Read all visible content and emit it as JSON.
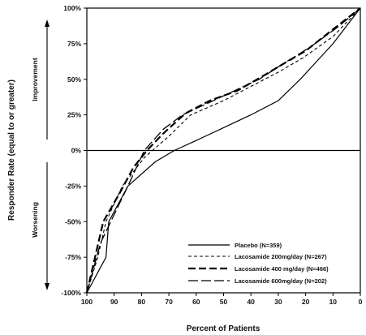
{
  "chart_data": {
    "type": "line",
    "xlabel": "Percent of Patients",
    "ylabel": "Responder Rate (equal to or greater)",
    "xlim": [
      100,
      0
    ],
    "ylim": [
      -100,
      100
    ],
    "x_ticks": [
      100,
      90,
      80,
      70,
      60,
      50,
      40,
      30,
      20,
      10,
      0
    ],
    "y_ticks": [
      100,
      75,
      50,
      25,
      0,
      -25,
      -50,
      -75,
      -100
    ],
    "y_tick_labels": [
      "100%",
      "75%",
      "50%",
      "25%",
      "0%",
      "-25%",
      "-50%",
      "-75%",
      "-100%"
    ],
    "side_labels": {
      "top": "Improvement",
      "bottom": "Worsening"
    },
    "legend_position": "bottom-right",
    "series": [
      {
        "name": "Placebo (N=359)",
        "dash": "solid",
        "width": 1.2,
        "points": [
          [
            100,
            -100
          ],
          [
            93,
            -75
          ],
          [
            92,
            -50
          ],
          [
            85,
            -25
          ],
          [
            75,
            -8
          ],
          [
            68,
            0
          ],
          [
            60,
            7
          ],
          [
            50,
            16
          ],
          [
            40,
            25
          ],
          [
            30,
            35
          ],
          [
            22,
            50
          ],
          [
            10,
            75
          ],
          [
            0,
            100
          ]
        ]
      },
      {
        "name": "Lacosamide  200mg/day  (N=267)",
        "dash": "4,3",
        "width": 1.1,
        "points": [
          [
            100,
            -100
          ],
          [
            96,
            -75
          ],
          [
            93,
            -50
          ],
          [
            87,
            -25
          ],
          [
            79,
            -5
          ],
          [
            76,
            0
          ],
          [
            70,
            10
          ],
          [
            62,
            25
          ],
          [
            50,
            35
          ],
          [
            40,
            45
          ],
          [
            30,
            55
          ],
          [
            21,
            65
          ],
          [
            10,
            80
          ],
          [
            0,
            100
          ]
        ]
      },
      {
        "name": "Lacosamide  400 mg/day  (N=466)",
        "dash": "9,4",
        "width": 2.2,
        "points": [
          [
            100,
            -100
          ],
          [
            94,
            -50
          ],
          [
            88,
            -30
          ],
          [
            83,
            -12
          ],
          [
            78,
            0
          ],
          [
            72,
            12
          ],
          [
            64,
            26
          ],
          [
            55,
            35
          ],
          [
            45,
            42
          ],
          [
            35,
            53
          ],
          [
            28,
            61
          ],
          [
            20,
            70
          ],
          [
            10,
            85
          ],
          [
            0,
            100
          ]
        ]
      },
      {
        "name": "Lacosamide  600mg/day  (N=202)",
        "dash": "12,4",
        "width": 1.3,
        "points": [
          [
            100,
            -100
          ],
          [
            95,
            -65
          ],
          [
            90,
            -45
          ],
          [
            85,
            -25
          ],
          [
            79,
            0
          ],
          [
            72,
            15
          ],
          [
            65,
            25
          ],
          [
            56,
            33
          ],
          [
            46,
            42
          ],
          [
            37,
            50
          ],
          [
            29,
            60
          ],
          [
            18,
            73
          ],
          [
            8,
            87
          ],
          [
            0,
            100
          ]
        ]
      }
    ]
  }
}
